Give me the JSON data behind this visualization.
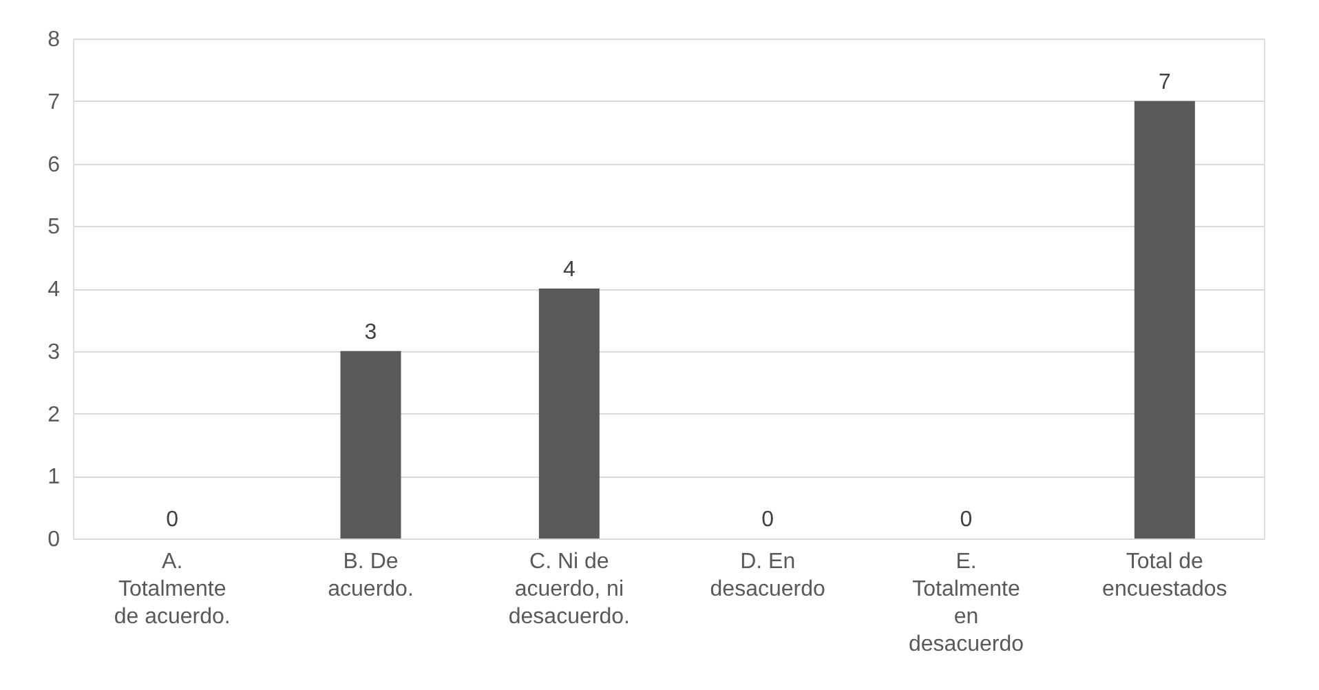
{
  "chart_data": {
    "type": "bar",
    "categories": [
      "A.\nTotalmente\nde acuerdo.",
      "B. De\nacuerdo.",
      "C. Ni de\nacuerdo, ni\ndesacuerdo.",
      "D. En\ndesacuerdo",
      "E.\nTotalmente\nen\ndesacuerdo",
      "Total de\nencuestados"
    ],
    "values": [
      0,
      3,
      4,
      0,
      0,
      7
    ],
    "color": "#595959",
    "ylim": [
      0,
      8
    ],
    "yticks": [
      0,
      1,
      2,
      3,
      4,
      5,
      6,
      7,
      8
    ],
    "grid": "y",
    "data_labels": true
  }
}
